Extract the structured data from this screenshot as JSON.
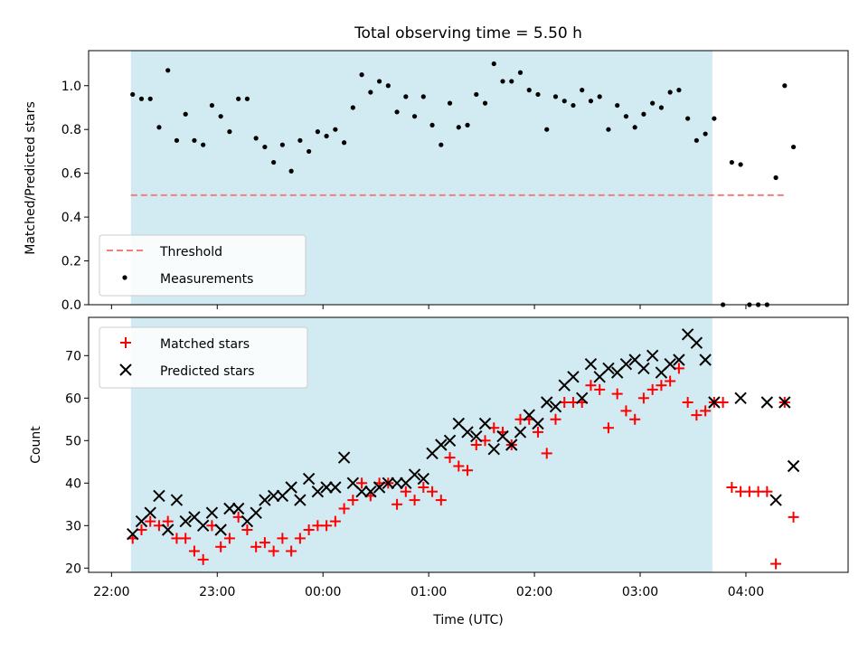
{
  "figure": {
    "title": "Total observing time = 5.50 h"
  },
  "chart_data": [
    {
      "type": "scatter",
      "panel": "top",
      "xlabel": "",
      "ylabel": "Matched/Predicted stars",
      "xlim": [
        "21:47",
        "04:58"
      ],
      "ylim": [
        0,
        1.16
      ],
      "yticks": [
        "0.0",
        "0.2",
        "0.4",
        "0.6",
        "0.8",
        "1.0"
      ],
      "grid": false,
      "legend_position": "lower-left",
      "shaded_interval": {
        "x0": "22:11",
        "x1": "03:41",
        "color": "#add8e6"
      },
      "series": [
        {
          "name": "Threshold",
          "kind": "dashed-line",
          "color": "#f08080",
          "x": [
            "22:11",
            "04:23"
          ],
          "y": [
            0.5,
            0.5
          ]
        },
        {
          "name": "Measurements",
          "kind": "points",
          "color": "#000000",
          "x": [
            "22:12",
            "22:17",
            "22:22",
            "22:27",
            "22:32",
            "22:37",
            "22:42",
            "22:47",
            "22:52",
            "22:57",
            "23:02",
            "23:07",
            "23:12",
            "23:17",
            "23:22",
            "23:27",
            "23:32",
            "23:37",
            "23:42",
            "23:47",
            "23:52",
            "23:57",
            "00:02",
            "00:07",
            "00:12",
            "00:17",
            "00:22",
            "00:27",
            "00:32",
            "00:37",
            "00:42",
            "00:47",
            "00:52",
            "00:57",
            "01:02",
            "01:07",
            "01:12",
            "01:17",
            "01:22",
            "01:27",
            "01:32",
            "01:37",
            "01:42",
            "01:47",
            "01:52",
            "01:57",
            "02:02",
            "02:07",
            "02:12",
            "02:17",
            "02:22",
            "02:27",
            "02:32",
            "02:37",
            "02:42",
            "02:47",
            "02:52",
            "02:57",
            "03:02",
            "03:07",
            "03:12",
            "03:17",
            "03:22",
            "03:27",
            "03:32",
            "03:37",
            "03:42",
            "03:47",
            "03:52",
            "03:57",
            "04:02",
            "04:07",
            "04:12",
            "04:17",
            "04:22",
            "04:27"
          ],
          "y": [
            0.96,
            0.94,
            0.94,
            0.81,
            1.07,
            0.75,
            0.87,
            0.75,
            0.73,
            0.91,
            0.86,
            0.79,
            0.94,
            0.94,
            0.76,
            0.72,
            0.65,
            0.73,
            0.61,
            0.75,
            0.7,
            0.79,
            0.77,
            0.8,
            0.74,
            0.9,
            1.05,
            0.97,
            1.02,
            1.0,
            0.88,
            0.95,
            0.86,
            0.95,
            0.82,
            0.73,
            0.92,
            0.81,
            0.82,
            0.96,
            0.92,
            1.1,
            1.02,
            1.02,
            1.06,
            0.98,
            0.96,
            0.8,
            0.95,
            0.93,
            0.91,
            0.98,
            0.93,
            0.95,
            0.8,
            0.91,
            0.86,
            0.81,
            0.87,
            0.92,
            0.9,
            0.97,
            0.98,
            0.85,
            0.75,
            0.78,
            0.85,
            0.0,
            0.65,
            0.64,
            0.0,
            0.0,
            0.0,
            0.58,
            1.0,
            0.72
          ]
        }
      ]
    },
    {
      "type": "scatter",
      "panel": "bottom",
      "xlabel": "Time (UTC)",
      "ylabel": "Count",
      "xlim": [
        "21:47",
        "04:58"
      ],
      "ylim": [
        19,
        79
      ],
      "xticks": [
        "22:00",
        "23:00",
        "00:00",
        "01:00",
        "02:00",
        "03:00",
        "04:00"
      ],
      "yticks": [
        "20",
        "30",
        "40",
        "50",
        "60",
        "70"
      ],
      "grid": false,
      "legend_position": "upper-left",
      "shaded_interval": {
        "x0": "22:11",
        "x1": "03:41",
        "color": "#add8e6"
      },
      "series": [
        {
          "name": "Matched stars",
          "kind": "plus-markers",
          "color": "#ff0000",
          "x": [
            "22:12",
            "22:17",
            "22:22",
            "22:27",
            "22:32",
            "22:37",
            "22:42",
            "22:47",
            "22:52",
            "22:57",
            "23:02",
            "23:07",
            "23:12",
            "23:17",
            "23:22",
            "23:27",
            "23:32",
            "23:37",
            "23:42",
            "23:47",
            "23:52",
            "23:57",
            "00:02",
            "00:07",
            "00:12",
            "00:17",
            "00:22",
            "00:27",
            "00:32",
            "00:37",
            "00:42",
            "00:47",
            "00:52",
            "00:57",
            "01:02",
            "01:07",
            "01:12",
            "01:17",
            "01:22",
            "01:27",
            "01:32",
            "01:37",
            "01:42",
            "01:47",
            "01:52",
            "01:57",
            "02:02",
            "02:07",
            "02:12",
            "02:17",
            "02:22",
            "02:27",
            "02:32",
            "02:37",
            "02:42",
            "02:47",
            "02:52",
            "02:57",
            "03:02",
            "03:07",
            "03:12",
            "03:17",
            "03:22",
            "03:27",
            "03:32",
            "03:37",
            "03:42",
            "03:47",
            "03:52",
            "03:57",
            "04:02",
            "04:07",
            "04:12",
            "04:17",
            "04:22",
            "04:27"
          ],
          "y": [
            27,
            29,
            31,
            30,
            31,
            27,
            27,
            24,
            22,
            30,
            25,
            27,
            32,
            29,
            25,
            26,
            24,
            27,
            24,
            27,
            29,
            30,
            30,
            31,
            34,
            36,
            40,
            37,
            40,
            40,
            35,
            38,
            36,
            39,
            38,
            36,
            46,
            44,
            43,
            49,
            50,
            53,
            52,
            49,
            55,
            55,
            52,
            47,
            55,
            59,
            59,
            59,
            63,
            62,
            53,
            61,
            57,
            55,
            60,
            62,
            63,
            64,
            67,
            59,
            56,
            57,
            59,
            59,
            39,
            38,
            38,
            38,
            38,
            21,
            59,
            32
          ]
        },
        {
          "name": "Predicted stars",
          "kind": "x-markers",
          "color": "#000000",
          "x": [
            "22:12",
            "22:17",
            "22:22",
            "22:27",
            "22:32",
            "22:37",
            "22:42",
            "22:47",
            "22:52",
            "22:57",
            "23:02",
            "23:07",
            "23:12",
            "23:17",
            "23:22",
            "23:27",
            "23:32",
            "23:37",
            "23:42",
            "23:47",
            "23:52",
            "23:57",
            "00:02",
            "00:07",
            "00:12",
            "00:17",
            "00:22",
            "00:27",
            "00:32",
            "00:37",
            "00:42",
            "00:47",
            "00:52",
            "00:57",
            "01:02",
            "01:07",
            "01:12",
            "01:17",
            "01:22",
            "01:27",
            "01:32",
            "01:37",
            "01:42",
            "01:47",
            "01:52",
            "01:57",
            "02:02",
            "02:07",
            "02:12",
            "02:17",
            "02:22",
            "02:27",
            "02:32",
            "02:37",
            "02:42",
            "02:47",
            "02:52",
            "02:57",
            "03:02",
            "03:07",
            "03:12",
            "03:17",
            "03:22",
            "03:27",
            "03:32",
            "03:37",
            "03:42",
            "03:57",
            "04:12",
            "04:17",
            "04:22",
            "04:27"
          ],
          "y": [
            28,
            31,
            33,
            37,
            29,
            36,
            31,
            32,
            30,
            33,
            29,
            34,
            34,
            31,
            33,
            36,
            37,
            37,
            39,
            36,
            41,
            38,
            39,
            39,
            46,
            40,
            38,
            38,
            39,
            40,
            40,
            40,
            42,
            41,
            47,
            49,
            50,
            54,
            52,
            51,
            54,
            48,
            51,
            49,
            52,
            56,
            54,
            59,
            58,
            63,
            65,
            60,
            68,
            65,
            67,
            66,
            68,
            69,
            67,
            70,
            66,
            68,
            69,
            75,
            73,
            69,
            59,
            60,
            59,
            36,
            59,
            44
          ]
        }
      ]
    }
  ]
}
